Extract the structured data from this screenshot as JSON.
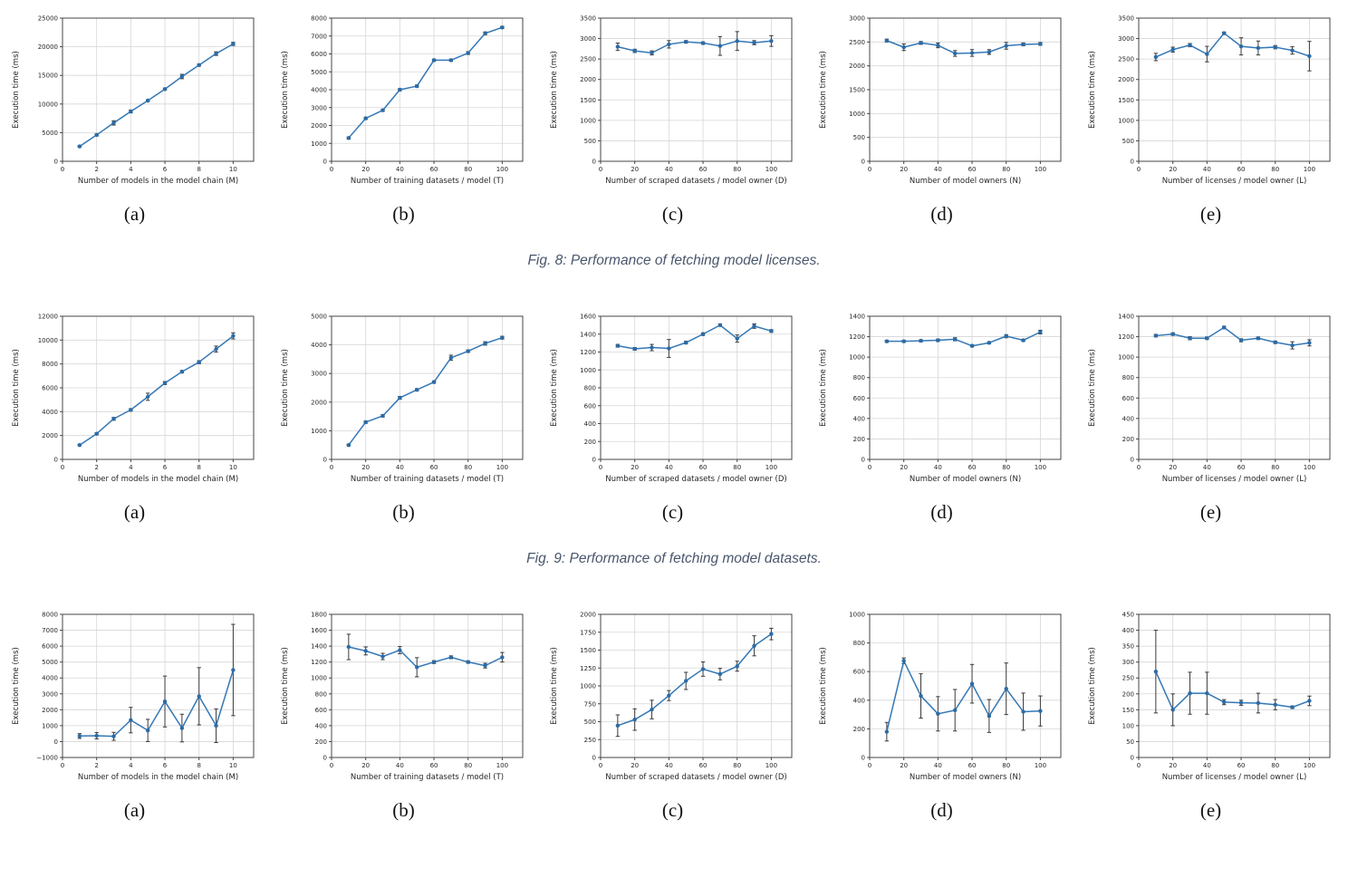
{
  "page": {
    "background": "#ffffff"
  },
  "styles": {
    "line_color": "#3478b6",
    "marker_color": "#2c6ba5",
    "error_color": "#3a3a3a",
    "grid_color": "#d6d6d6",
    "spine_color": "#444444",
    "caption_color": "#49566b"
  },
  "chart_data": {
    "figures": [
      {
        "caption": "Fig. 8: Performance of fetching model licenses.",
        "charts": [
          {
            "type": "line",
            "sublabel": "(a)",
            "ylabel": "Execution time (ms)",
            "xlabel": "Number of models in the model chain (M)",
            "x": [
              1,
              2,
              3,
              4,
              5,
              6,
              7,
              8,
              9,
              10
            ],
            "xticks": [
              0,
              2,
              4,
              6,
              8,
              10
            ],
            "xlim": [
              0,
              11.2
            ],
            "ylim": [
              0,
              25000
            ],
            "ytick_step": 5000,
            "values": [
              2600,
              4600,
              6700,
              8700,
              10600,
              12600,
              14800,
              16800,
              18800,
              20500
            ],
            "errors": [
              120,
              180,
              380,
              250,
              150,
              180,
              380,
              180,
              320,
              280
            ]
          },
          {
            "type": "line",
            "sublabel": "(b)",
            "ylabel": "Execution time (ms)",
            "xlabel": "Number of training datasets / model (T)",
            "x": [
              10,
              20,
              30,
              40,
              50,
              60,
              70,
              80,
              90,
              100
            ],
            "xticks": [
              0,
              20,
              40,
              60,
              80,
              100
            ],
            "xlim": [
              0,
              112
            ],
            "ylim": [
              0,
              8000
            ],
            "ytick_step": 1000,
            "values": [
              1300,
              2400,
              2850,
              4000,
              4200,
              5650,
              5650,
              6050,
              7150,
              7480
            ],
            "errors": [
              60,
              60,
              60,
              60,
              60,
              60,
              60,
              80,
              80,
              60
            ]
          },
          {
            "type": "line",
            "sublabel": "(c)",
            "ylabel": "Execution time (ms)",
            "xlabel": "Number of scraped datasets / model owner (D)",
            "x": [
              10,
              20,
              30,
              40,
              50,
              60,
              70,
              80,
              90,
              100
            ],
            "xticks": [
              0,
              20,
              40,
              60,
              80,
              100
            ],
            "xlim": [
              0,
              112
            ],
            "ylim": [
              0,
              3500
            ],
            "ytick_step": 500,
            "values": [
              2800,
              2700,
              2650,
              2860,
              2920,
              2890,
              2820,
              2940,
              2900,
              2940
            ],
            "errors": [
              90,
              40,
              50,
              90,
              30,
              30,
              230,
              230,
              50,
              130
            ]
          },
          {
            "type": "line",
            "sublabel": "(d)",
            "ylabel": "Execution time (ms)",
            "xlabel": "Number of model owners (N)",
            "x": [
              10,
              20,
              30,
              40,
              50,
              60,
              70,
              80,
              90,
              100
            ],
            "xticks": [
              0,
              20,
              40,
              60,
              80,
              100
            ],
            "xlim": [
              0,
              112
            ],
            "ylim": [
              0,
              3000
            ],
            "ytick_step": 500,
            "values": [
              2530,
              2390,
              2480,
              2430,
              2260,
              2270,
              2290,
              2420,
              2450,
              2460
            ],
            "errors": [
              30,
              70,
              30,
              50,
              60,
              70,
              50,
              70,
              30,
              30
            ]
          },
          {
            "type": "line",
            "sublabel": "(e)",
            "ylabel": "Execution time (ms)",
            "xlabel": "Number of licenses / model owner (L)",
            "x": [
              10,
              20,
              30,
              40,
              50,
              60,
              70,
              80,
              90,
              100
            ],
            "xticks": [
              0,
              20,
              40,
              60,
              80,
              100
            ],
            "xlim": [
              0,
              112
            ],
            "ylim": [
              0,
              3500
            ],
            "ytick_step": 500,
            "values": [
              2550,
              2730,
              2840,
              2620,
              3130,
              2810,
              2770,
              2790,
              2710,
              2570
            ],
            "errors": [
              90,
              60,
              40,
              190,
              30,
              210,
              170,
              40,
              90,
              360
            ]
          }
        ]
      },
      {
        "caption": "Fig. 9: Performance of fetching model datasets.",
        "charts": [
          {
            "type": "line",
            "sublabel": "(a)",
            "ylabel": "Execution time (ms)",
            "xlabel": "Number of models in the model chain (M)",
            "x": [
              1,
              2,
              3,
              4,
              5,
              6,
              7,
              8,
              9,
              10
            ],
            "xticks": [
              0,
              2,
              4,
              6,
              8,
              10
            ],
            "xlim": [
              0,
              11.2
            ],
            "ylim": [
              0,
              12000
            ],
            "ytick_step": 2000,
            "values": [
              1200,
              2150,
              3400,
              4150,
              5250,
              6400,
              7350,
              8150,
              9250,
              10350
            ],
            "errors": [
              60,
              80,
              120,
              100,
              300,
              130,
              100,
              130,
              250,
              250
            ]
          },
          {
            "type": "line",
            "sublabel": "(b)",
            "ylabel": "Execution time (ms)",
            "xlabel": "Number of training datasets / model (T)",
            "x": [
              10,
              20,
              30,
              40,
              50,
              60,
              70,
              80,
              90,
              100
            ],
            "xticks": [
              0,
              20,
              40,
              60,
              80,
              100
            ],
            "xlim": [
              0,
              112
            ],
            "ylim": [
              0,
              5000
            ],
            "ytick_step": 1000,
            "values": [
              500,
              1300,
              1520,
              2150,
              2430,
              2700,
              3550,
              3780,
              4050,
              4250
            ],
            "errors": [
              30,
              40,
              40,
              50,
              40,
              40,
              90,
              40,
              60,
              50
            ]
          },
          {
            "type": "line",
            "sublabel": "(c)",
            "ylabel": "Execution time (ms)",
            "xlabel": "Number of scraped datasets / model owner (D)",
            "x": [
              10,
              20,
              30,
              40,
              50,
              60,
              70,
              80,
              90,
              100
            ],
            "xticks": [
              0,
              20,
              40,
              60,
              80,
              100
            ],
            "xlim": [
              0,
              112
            ],
            "ylim": [
              0,
              1600
            ],
            "ytick_step": 200,
            "values": [
              1270,
              1235,
              1250,
              1240,
              1305,
              1400,
              1500,
              1350,
              1490,
              1435
            ],
            "errors": [
              15,
              15,
              35,
              100,
              15,
              15,
              12,
              40,
              25,
              15
            ]
          },
          {
            "type": "line",
            "sublabel": "(d)",
            "ylabel": "Execution time (ms)",
            "xlabel": "Number of model owners (N)",
            "x": [
              10,
              20,
              30,
              40,
              50,
              60,
              70,
              80,
              90,
              100
            ],
            "xticks": [
              0,
              20,
              40,
              60,
              80,
              100
            ],
            "xlim": [
              0,
              112
            ],
            "ylim": [
              0,
              1400
            ],
            "ytick_step": 200,
            "values": [
              1155,
              1155,
              1160,
              1165,
              1175,
              1110,
              1140,
              1205,
              1165,
              1245
            ],
            "errors": [
              10,
              10,
              10,
              12,
              15,
              10,
              10,
              15,
              10,
              18
            ]
          },
          {
            "type": "line",
            "sublabel": "(e)",
            "ylabel": "Execution time (ms)",
            "xlabel": "Number of licenses / model owner (L)",
            "x": [
              10,
              20,
              30,
              40,
              50,
              60,
              70,
              80,
              90,
              100
            ],
            "xticks": [
              0,
              20,
              40,
              60,
              80,
              100
            ],
            "xlim": [
              0,
              112
            ],
            "ylim": [
              0,
              1400
            ],
            "ytick_step": 200,
            "values": [
              1210,
              1225,
              1185,
              1185,
              1290,
              1165,
              1185,
              1145,
              1115,
              1140
            ],
            "errors": [
              12,
              12,
              15,
              12,
              12,
              15,
              12,
              12,
              35,
              30
            ]
          }
        ]
      },
      {
        "caption": "",
        "charts": [
          {
            "type": "line",
            "sublabel": "(a)",
            "ylabel": "Execution time (ms)",
            "xlabel": "Number of models in the model chain (M)",
            "x": [
              1,
              2,
              3,
              4,
              5,
              6,
              7,
              8,
              9,
              10
            ],
            "xticks": [
              0,
              2,
              4,
              6,
              8,
              10
            ],
            "xlim": [
              0,
              11.2
            ],
            "ylim": [
              -1000,
              8000
            ],
            "ytick_step": 1000,
            "values": [
              350,
              370,
              330,
              1350,
              700,
              2520,
              850,
              2850,
              1000,
              4500
            ],
            "errors": [
              150,
              200,
              250,
              800,
              700,
              1600,
              870,
              1800,
              1060,
              2870
            ]
          },
          {
            "type": "line",
            "sublabel": "(b)",
            "ylabel": "Execution time (ms)",
            "xlabel": "Number of training datasets / model (T)",
            "x": [
              10,
              20,
              30,
              40,
              50,
              60,
              70,
              80,
              90,
              100
            ],
            "xticks": [
              0,
              20,
              40,
              60,
              80,
              100
            ],
            "xlim": [
              0,
              112
            ],
            "ylim": [
              0,
              1800
            ],
            "ytick_step": 200,
            "values": [
              1390,
              1340,
              1270,
              1350,
              1135,
              1200,
              1260,
              1200,
              1155,
              1260
            ],
            "errors": [
              160,
              50,
              40,
              45,
              120,
              18,
              18,
              15,
              30,
              60
            ]
          },
          {
            "type": "line",
            "sublabel": "(c)",
            "ylabel": "Execution time (ms)",
            "xlabel": "Number of scraped datasets / model owner (D)",
            "x": [
              10,
              20,
              30,
              40,
              50,
              60,
              70,
              80,
              90,
              100
            ],
            "xticks": [
              0,
              20,
              40,
              60,
              80,
              100
            ],
            "xlim": [
              0,
              112
            ],
            "ylim": [
              0,
              2000
            ],
            "ytick_step": 250,
            "values": [
              445,
              530,
              670,
              865,
              1070,
              1235,
              1165,
              1275,
              1560,
              1725
            ],
            "errors": [
              150,
              150,
              130,
              70,
              120,
              100,
              80,
              70,
              140,
              80
            ]
          },
          {
            "type": "line",
            "sublabel": "(d)",
            "ylabel": "Execution time (ms)",
            "xlabel": "Number of model owners (N)",
            "x": [
              10,
              20,
              30,
              40,
              50,
              60,
              70,
              80,
              90,
              100
            ],
            "xticks": [
              0,
              20,
              40,
              60,
              80,
              100
            ],
            "xlim": [
              0,
              112
            ],
            "ylim": [
              0,
              1000
            ],
            "ytick_step": 200,
            "values": [
              180,
              675,
              430,
              305,
              330,
              515,
              290,
              480,
              320,
              325
            ],
            "errors": [
              65,
              20,
              155,
              120,
              145,
              135,
              115,
              180,
              130,
              105
            ]
          },
          {
            "type": "line",
            "sublabel": "(e)",
            "ylabel": "Execution time (ms)",
            "xlabel": "Number of licenses / model owner (L)",
            "x": [
              10,
              20,
              30,
              40,
              50,
              60,
              70,
              80,
              90,
              100
            ],
            "xticks": [
              0,
              20,
              40,
              60,
              80,
              100
            ],
            "xlim": [
              0,
              112
            ],
            "ylim": [
              0,
              450
            ],
            "ytick_step": 50,
            "values": [
              270,
              150,
              202,
              202,
              174,
              172,
              171,
              166,
              158,
              178
            ],
            "errors": [
              130,
              50,
              66,
              66,
              8,
              8,
              31,
              16,
              4,
              15
            ]
          }
        ]
      }
    ]
  }
}
